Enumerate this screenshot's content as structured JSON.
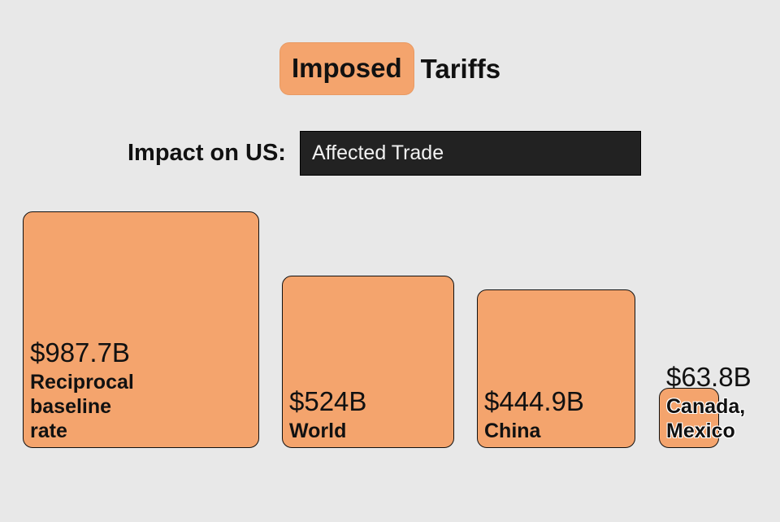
{
  "header": {
    "title_highlight": "Imposed",
    "title_rest": "Tariffs"
  },
  "controls": {
    "impact_label": "Impact on US:",
    "impact_value": "Affected Trade"
  },
  "colors": {
    "box_fill": "#f4a46d",
    "select_bg": "#222222",
    "background": "#e8e8e8"
  },
  "chart_data": {
    "type": "bar",
    "categories": [
      "Reciprocal baseline rate",
      "World",
      "China",
      "Canada, Mexico"
    ],
    "category_labels": [
      "Reciprocal\nbaseline\nrate",
      "World",
      "China",
      "Canada,\nMexico"
    ],
    "values": [
      987.7,
      524,
      444.9,
      63.8
    ],
    "value_labels": [
      "$987.7B",
      "$524B",
      "$444.9B",
      "$63.8B"
    ],
    "unit": "$B",
    "encoding": "square area proportional to value"
  }
}
